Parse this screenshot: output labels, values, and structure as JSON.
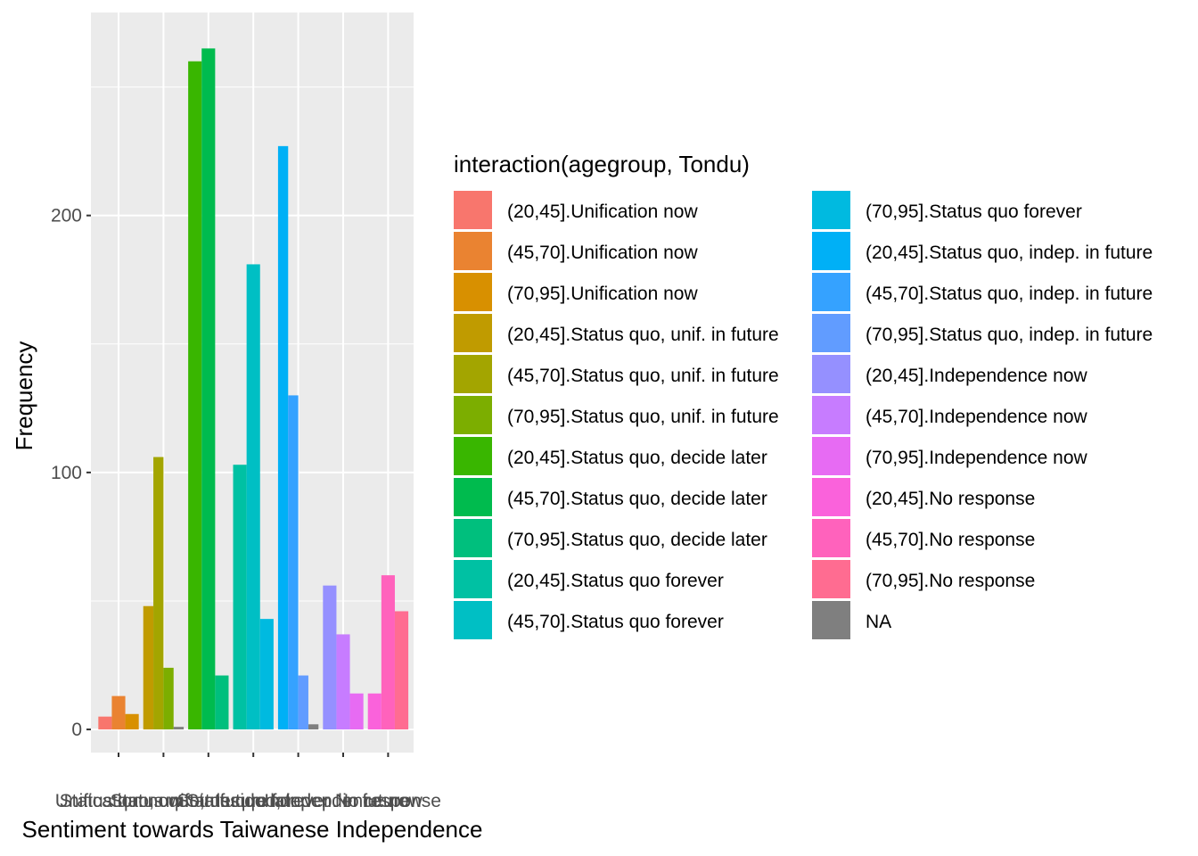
{
  "chart_data": {
    "type": "bar",
    "xlabel": "Sentiment towards Taiwanese Independence",
    "ylabel": "Frequency",
    "ylim": [
      -9,
      279
    ],
    "yticks": [
      0,
      100,
      200
    ],
    "grid": true,
    "legend_position": "right",
    "legend_title": "interaction(agegroup, Tondu)",
    "categories": [
      "Unification now",
      "Status quo, unif. in future",
      "Status quo, decide later",
      "Status quo forever",
      "Status quo, indep. in future",
      "Independence now",
      "No response"
    ],
    "series": [
      {
        "name": "(20,45].Unification now",
        "color": "#F8766D",
        "category": 0,
        "slot": 0,
        "slots": 3,
        "value": 5
      },
      {
        "name": "(45,70].Unification now",
        "color": "#EA8331",
        "category": 0,
        "slot": 1,
        "slots": 3,
        "value": 13
      },
      {
        "name": "(70,95].Unification now",
        "color": "#D89000",
        "category": 0,
        "slot": 2,
        "slots": 3,
        "value": 6
      },
      {
        "name": "(20,45].Status quo, unif. in future",
        "color": "#C09B00",
        "category": 1,
        "slot": 0,
        "slots": 4,
        "value": 48
      },
      {
        "name": "(45,70].Status quo, unif. in future",
        "color": "#A3A500",
        "category": 1,
        "slot": 1,
        "slots": 4,
        "value": 106
      },
      {
        "name": "(70,95].Status quo, unif. in future",
        "color": "#7CAE00",
        "category": 1,
        "slot": 2,
        "slots": 4,
        "value": 24
      },
      {
        "name": "(20,45].Status quo, decide later",
        "color": "#39B600",
        "category": 2,
        "slot": 0,
        "slots": 3,
        "value": 260
      },
      {
        "name": "(45,70].Status quo, decide later",
        "color": "#00BB4E",
        "category": 2,
        "slot": 1,
        "slots": 3,
        "value": 265
      },
      {
        "name": "(70,95].Status quo, decide later",
        "color": "#00BF7D",
        "category": 2,
        "slot": 2,
        "slots": 3,
        "value": 21
      },
      {
        "name": "(20,45].Status quo forever",
        "color": "#00C1A3",
        "category": 3,
        "slot": 0,
        "slots": 3,
        "value": 103
      },
      {
        "name": "(45,70].Status quo forever",
        "color": "#00BFC4",
        "category": 3,
        "slot": 1,
        "slots": 3,
        "value": 181
      },
      {
        "name": "(70,95].Status quo forever",
        "color": "#00BAE0",
        "category": 3,
        "slot": 2,
        "slots": 3,
        "value": 43
      },
      {
        "name": "(20,45].Status quo, indep. in future",
        "color": "#00B0F6",
        "category": 4,
        "slot": 0,
        "slots": 4,
        "value": 227
      },
      {
        "name": "(45,70].Status quo, indep. in future",
        "color": "#35A2FF",
        "category": 4,
        "slot": 1,
        "slots": 4,
        "value": 130
      },
      {
        "name": "(70,95].Status quo, indep. in future",
        "color": "#619CFF",
        "category": 4,
        "slot": 2,
        "slots": 4,
        "value": 21
      },
      {
        "name": "(20,45].Independence now",
        "color": "#9590FF",
        "category": 5,
        "slot": 0,
        "slots": 3,
        "value": 56
      },
      {
        "name": "(45,70].Independence now",
        "color": "#C77CFF",
        "category": 5,
        "slot": 1,
        "slots": 3,
        "value": 37
      },
      {
        "name": "(70,95].Independence now",
        "color": "#E76BF3",
        "category": 5,
        "slot": 2,
        "slots": 3,
        "value": 14
      },
      {
        "name": "(20,45].No response",
        "color": "#FA62DB",
        "category": 6,
        "slot": 0,
        "slots": 3,
        "value": 14
      },
      {
        "name": "(45,70].No response",
        "color": "#FF62BC",
        "category": 6,
        "slot": 1,
        "slots": 3,
        "value": 60
      },
      {
        "name": "(70,95].No response",
        "color": "#FF6C91",
        "category": 6,
        "slot": 2,
        "slots": 3,
        "value": 46
      },
      {
        "name": "NA",
        "color": "#7F7F7F",
        "na_bars": [
          {
            "category": 1,
            "slot": 3,
            "slots": 4,
            "value": 1
          },
          {
            "category": 4,
            "slot": 3,
            "slots": 4,
            "value": 2
          }
        ]
      }
    ]
  }
}
